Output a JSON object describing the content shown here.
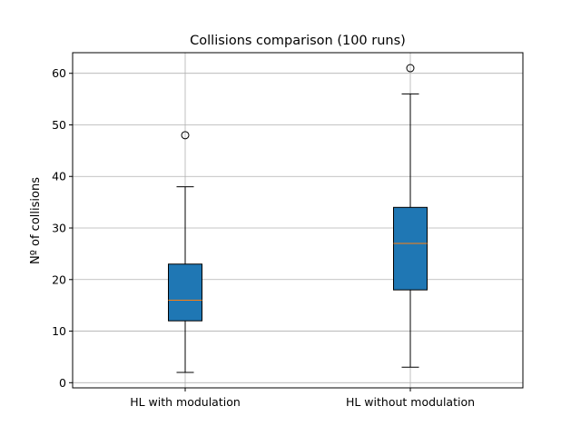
{
  "chart_data": {
    "type": "box",
    "title": "Collisions comparison (100 runs)",
    "xlabel": "",
    "ylabel": "Nº of collisions",
    "categories": [
      "HL with modulation",
      "HL without modulation"
    ],
    "ylim": [
      -1,
      64
    ],
    "yticks": [
      0,
      10,
      20,
      30,
      40,
      50,
      60
    ],
    "grid": true,
    "boxes": [
      {
        "category": "HL with modulation",
        "whisker_low": 2,
        "q1": 12,
        "median": 16,
        "q3": 23,
        "whisker_high": 38,
        "outliers": [
          48
        ]
      },
      {
        "category": "HL without modulation",
        "whisker_low": 3,
        "q1": 18,
        "median": 27,
        "q3": 34,
        "whisker_high": 56,
        "outliers": [
          61
        ]
      }
    ],
    "colors": {
      "box_fill": "#1f77b4",
      "median": "#ff7f0e",
      "grid": "#b0b0b0",
      "edge": "#000000"
    }
  }
}
